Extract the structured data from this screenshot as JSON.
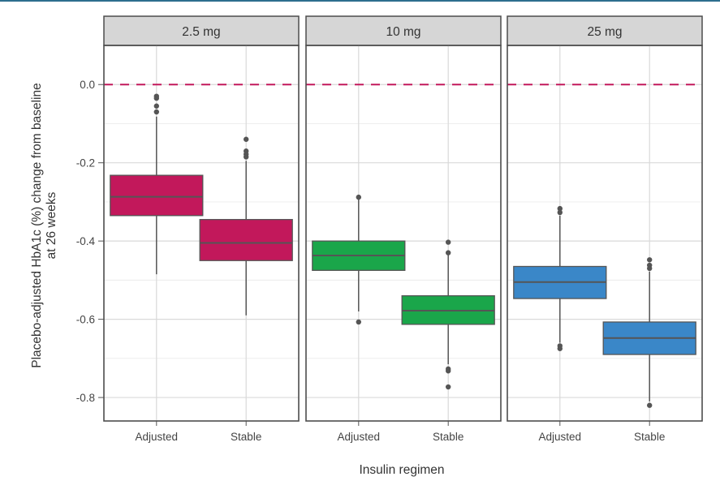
{
  "chart_data": {
    "type": "boxplot",
    "facet_variable": "dose",
    "xlabel": "Insulin regimen",
    "ylabel_line1": "Placebo-adjusted HbA1c (%) change from baseline",
    "ylabel_line2": "at 26 weeks",
    "ylim": [
      -0.86,
      0.1
    ],
    "yticks": [
      0.0,
      -0.2,
      -0.4,
      -0.6,
      -0.8
    ],
    "ytick_labels": [
      "0.0",
      "-0.2",
      "-0.4",
      "-0.6",
      "-0.8"
    ],
    "categories": [
      "Adjusted",
      "Stable"
    ],
    "reference_line": {
      "y": 0.0,
      "color": "#c2185b",
      "style": "dashed"
    },
    "grid": true,
    "colors": {
      "2.5 mg": "#c2185b",
      "10 mg": "#1aa64a",
      "25 mg": "#3a87c8"
    },
    "panels": [
      {
        "label": "2.5 mg",
        "color": "#c2185b",
        "boxes": [
          {
            "category": "Adjusted",
            "whisker_low": -0.485,
            "q1": -0.335,
            "median": -0.287,
            "q3": -0.232,
            "whisker_high": -0.082,
            "outliers": [
              -0.03,
              -0.035,
              -0.055,
              -0.07
            ]
          },
          {
            "category": "Stable",
            "whisker_low": -0.59,
            "q1": -0.45,
            "median": -0.405,
            "q3": -0.345,
            "whisker_high": -0.195,
            "outliers": [
              -0.14,
              -0.17,
              -0.178,
              -0.185
            ]
          }
        ]
      },
      {
        "label": "10 mg",
        "color": "#1aa64a",
        "boxes": [
          {
            "category": "Adjusted",
            "whisker_low": -0.58,
            "q1": -0.475,
            "median": -0.437,
            "q3": -0.4,
            "whisker_high": -0.29,
            "outliers": [
              -0.288,
              -0.607
            ]
          },
          {
            "category": "Stable",
            "whisker_low": -0.715,
            "q1": -0.613,
            "median": -0.578,
            "q3": -0.54,
            "whisker_high": -0.435,
            "outliers": [
              -0.403,
              -0.43,
              -0.727,
              -0.732,
              -0.773
            ]
          }
        ]
      },
      {
        "label": "25 mg",
        "color": "#3a87c8",
        "boxes": [
          {
            "category": "Adjusted",
            "whisker_low": -0.66,
            "q1": -0.547,
            "median": -0.505,
            "q3": -0.465,
            "whisker_high": -0.335,
            "outliers": [
              -0.317,
              -0.327,
              -0.668,
              -0.675
            ]
          },
          {
            "category": "Stable",
            "whisker_low": -0.81,
            "q1": -0.69,
            "median": -0.648,
            "q3": -0.607,
            "whisker_high": -0.478,
            "outliers": [
              -0.448,
              -0.462,
              -0.47,
              -0.82
            ]
          }
        ]
      }
    ]
  }
}
